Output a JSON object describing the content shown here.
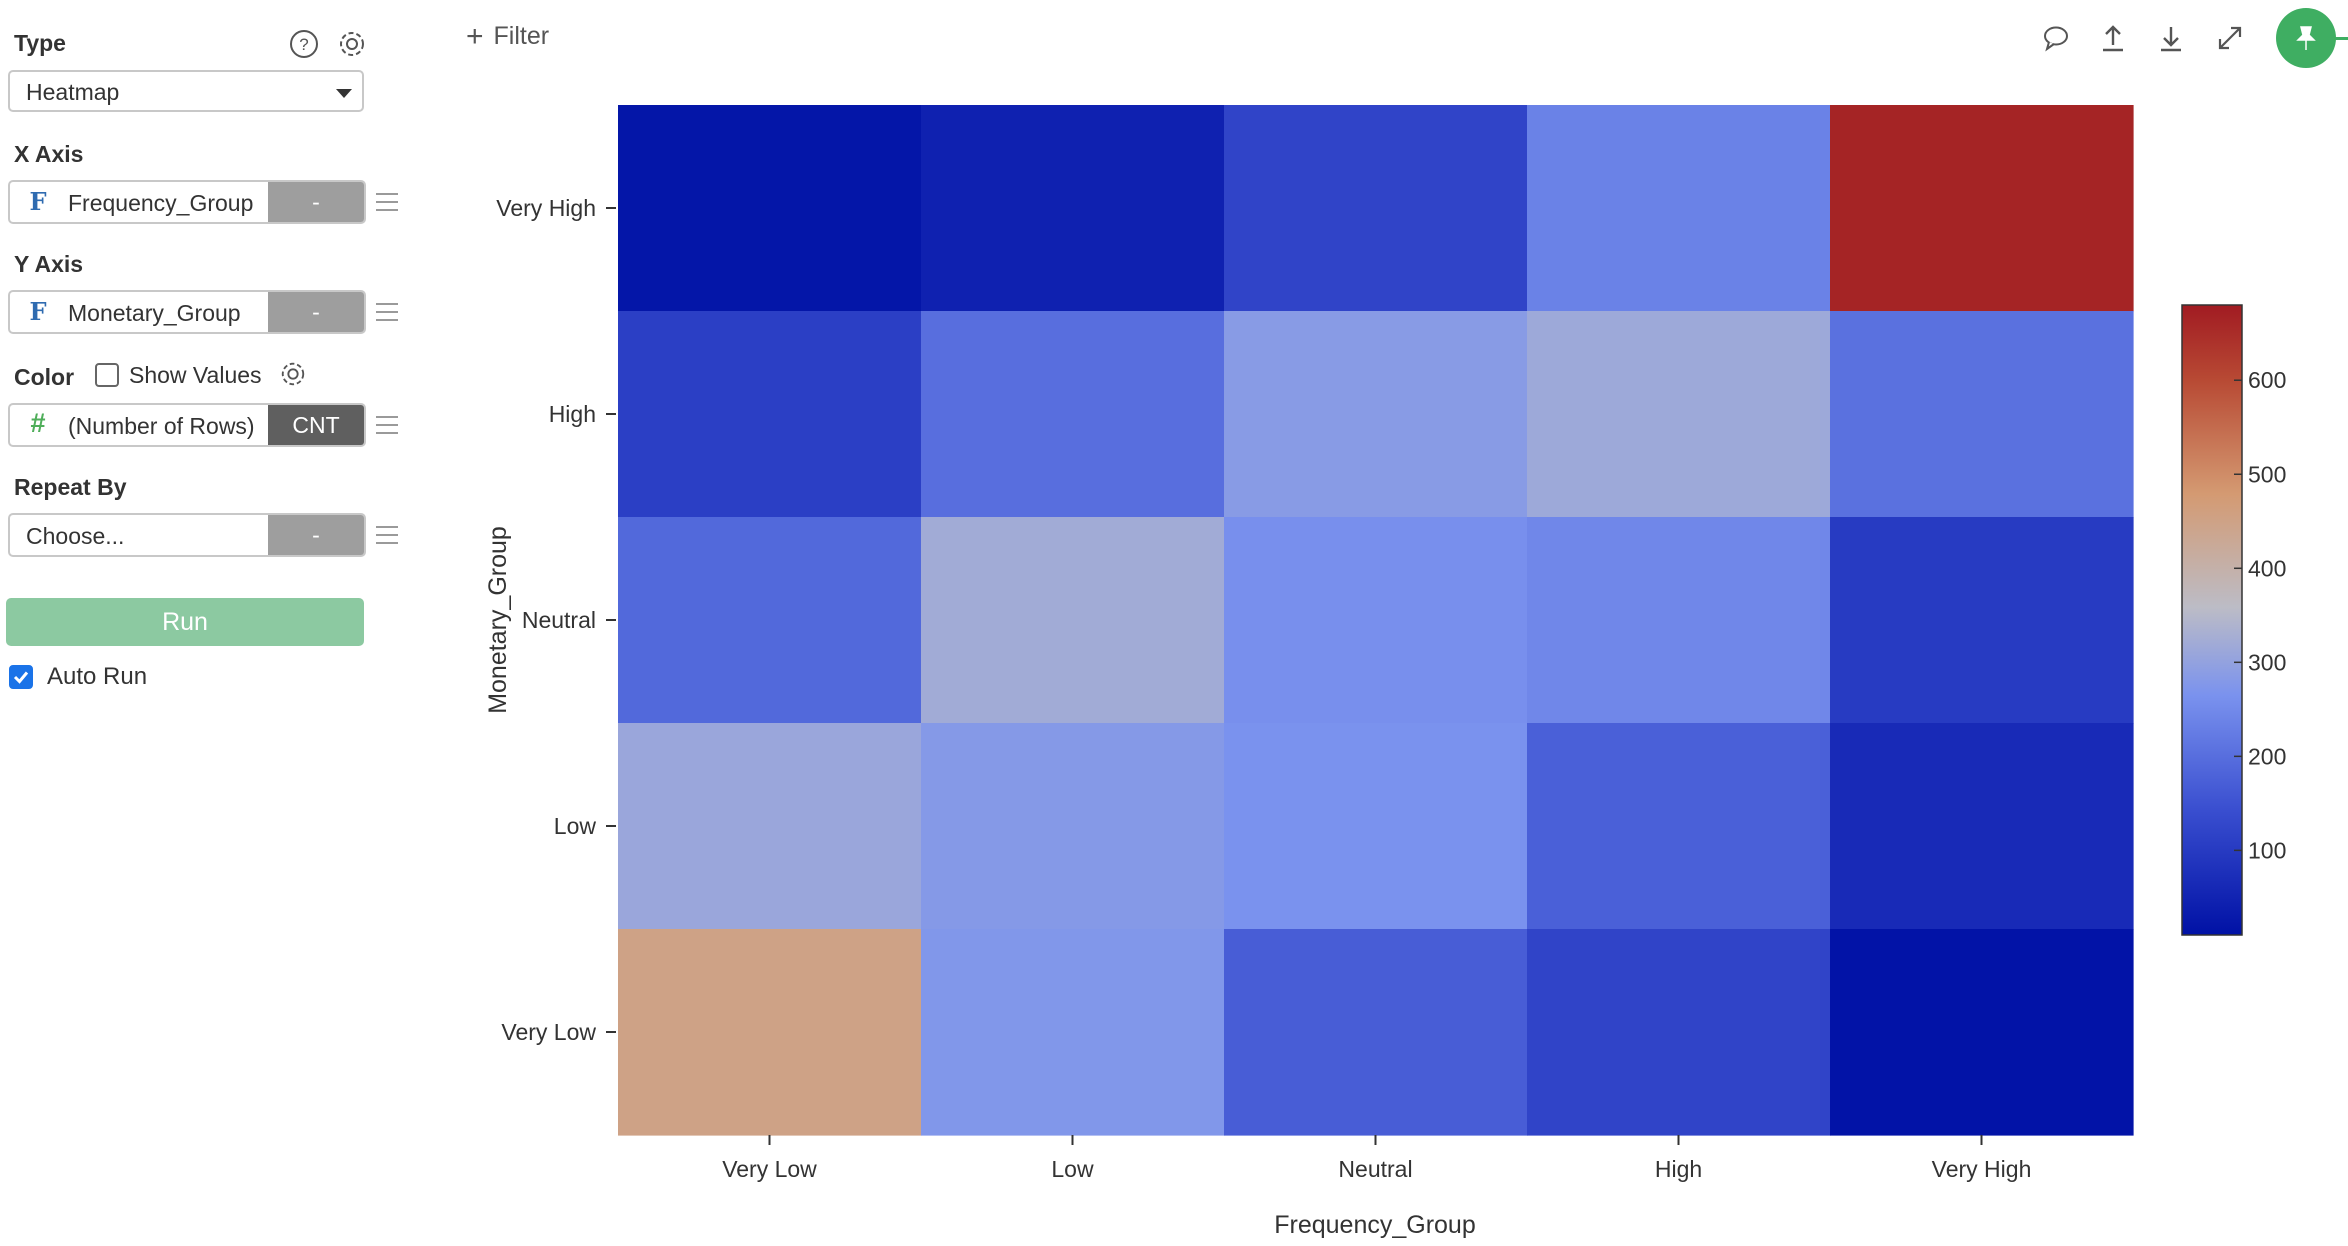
{
  "sidebar": {
    "type_label": "Type",
    "type_value": "Heatmap",
    "x_axis_label": "X Axis",
    "x_field": {
      "icon": "F",
      "name": "Frequency_Group",
      "agg": "-"
    },
    "y_axis_label": "Y Axis",
    "y_field": {
      "icon": "F",
      "name": "Monetary_Group",
      "agg": "-"
    },
    "color_label": "Color",
    "show_values_label": "Show Values",
    "show_values_checked": false,
    "color_field": {
      "icon": "#",
      "name": "(Number of Rows)",
      "agg": "CNT"
    },
    "repeat_label": "Repeat By",
    "repeat_field": {
      "name": "Choose...",
      "agg": "-"
    },
    "run_label": "Run",
    "auto_run_label": "Auto Run",
    "auto_run_checked": true
  },
  "toolbar": {
    "filter_label": "Filter",
    "icons": [
      "comment-icon",
      "upload-icon",
      "download-icon",
      "expand-icon",
      "pin-icon"
    ],
    "pin_color": "#3fae62"
  },
  "chart_data": {
    "type": "heatmap",
    "x_categories": [
      "Very Low",
      "Low",
      "Neutral",
      "High",
      "Very High"
    ],
    "y_categories": [
      "Very High",
      "High",
      "Neutral",
      "Low",
      "Very Low"
    ],
    "xlabel": "Frequency_Group",
    "ylabel": "Monetary_Group",
    "values": [
      [
        20,
        45,
        120,
        235,
        665
      ],
      [
        110,
        200,
        285,
        315,
        205
      ],
      [
        190,
        320,
        260,
        245,
        100
      ],
      [
        310,
        280,
        265,
        175,
        65
      ],
      [
        450,
        275,
        170,
        120,
        15
      ]
    ],
    "colorbar": {
      "ticks": [
        100,
        200,
        300,
        400,
        500,
        600
      ],
      "min": 10,
      "max": 680
    },
    "colormap": [
      "#0011a5",
      "#3a4fd0",
      "#7a92ee",
      "#bcbcc6",
      "#d49a72",
      "#b84a34",
      "#a11b22"
    ]
  }
}
